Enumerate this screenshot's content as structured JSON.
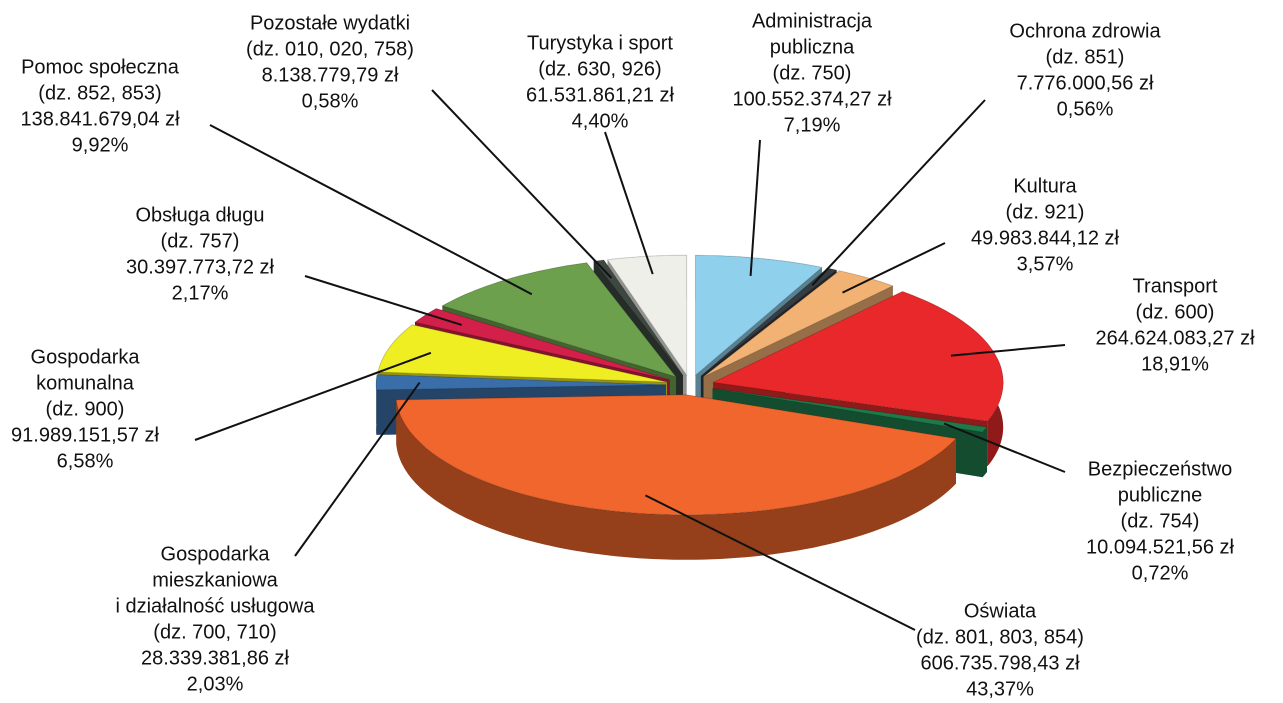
{
  "chart_data": {
    "type": "pie",
    "categories": [
      [
        "Administracja",
        "publiczna"
      ],
      [
        "Ochrona zdrowia"
      ],
      [
        "Kultura"
      ],
      [
        "Transport"
      ],
      [
        "Bezpieczeństwo",
        "publiczne"
      ],
      [
        "Oświata"
      ],
      [
        "Gospodarka",
        "mieszkaniowa",
        "i działalność usługowa"
      ],
      [
        "Gospodarka",
        "komunalna"
      ],
      [
        "Obsługa długu"
      ],
      [
        "Pomoc społeczna"
      ],
      [
        "Pozostałe wydatki"
      ],
      [
        "Turystyka i sport"
      ]
    ],
    "divisions": [
      "(dz. 750)",
      "(dz. 851)",
      "(dz. 921)",
      "(dz. 600)",
      "(dz. 754)",
      "(dz. 801, 803, 854)",
      "(dz. 700, 710)",
      "(dz. 900)",
      "(dz. 757)",
      "(dz. 852, 853)",
      "(dz. 010, 020, 758)",
      "(dz. 630, 926)"
    ],
    "amounts": [
      "100.552.374,27 zł",
      "7.776.000,56 zł",
      "49.983.844,12 zł",
      "264.624.083,27 zł",
      "10.094.521,56 zł",
      "606.735.798,43 zł",
      "28.339.381,86 zł",
      "91.989.151,57 zł",
      "30.397.773,72 zł",
      "138.841.679,04 zł",
      "8.138.779,79 zł",
      "61.531.861,21 zł"
    ],
    "values": [
      7.19,
      0.56,
      3.57,
      18.91,
      0.72,
      43.37,
      2.03,
      6.58,
      2.17,
      9.92,
      0.58,
      4.4
    ],
    "value_labels": [
      "7,19%",
      "0,56%",
      "3,57%",
      "18,91%",
      "0,72%",
      "43,37%",
      "2,03%",
      "6,58%",
      "2,17%",
      "9,92%",
      "0,58%",
      "4,40%"
    ],
    "colors": [
      "#8fd0ec",
      "#353c42",
      "#f2b274",
      "#e8282a",
      "#1e7a4a",
      "#f0662c",
      "#3a6ea8",
      "#eeee22",
      "#d2204a",
      "#6ca04c",
      "#3e4842",
      "#efefea"
    ]
  }
}
